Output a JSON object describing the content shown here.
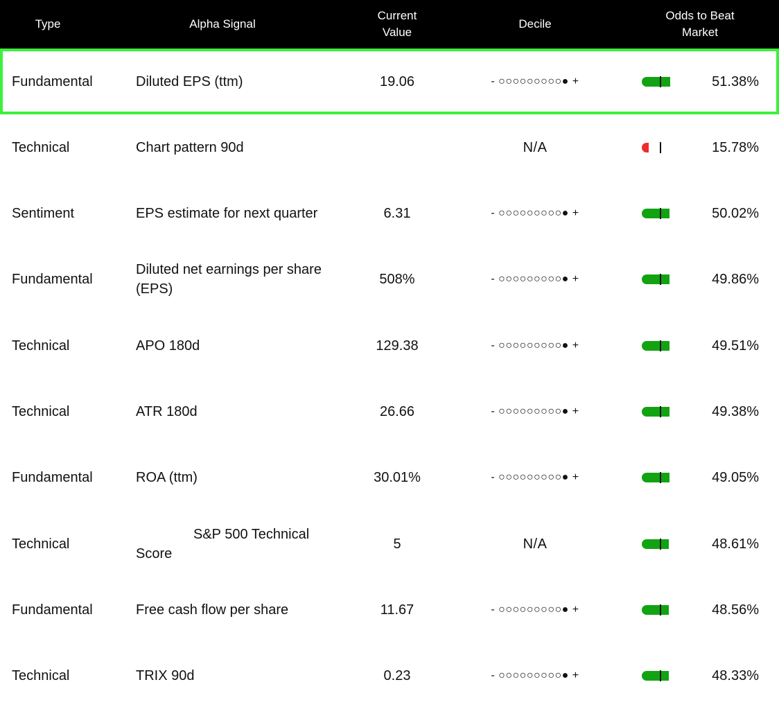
{
  "header": {
    "type": "Type",
    "alpha": "Alpha Signal",
    "current": "Current\nValue",
    "decile": "Decile",
    "odds": "Odds to Beat\nMarket"
  },
  "colors": {
    "selected_border": "#3cf03c",
    "bar_green": "#12a312",
    "bar_red": "#ef2a2a"
  },
  "rows": [
    {
      "type": "Fundamental",
      "signal": "Diluted EPS (ttm)",
      "current": "19.06",
      "decile": "- ○○○○○○○○○● +",
      "odds": "51.38%",
      "odds_fraction": 0.5138,
      "bar_color": "green",
      "selected": true
    },
    {
      "type": "Technical",
      "signal": "Chart pattern 90d",
      "current": "",
      "decile": "N/A",
      "odds": "15.78%",
      "odds_fraction": 0.1578,
      "bar_color": "red",
      "selected": false
    },
    {
      "type": "Sentiment",
      "signal": "EPS estimate for next quarter",
      "current": "6.31",
      "decile": "- ○○○○○○○○○● +",
      "odds": "50.02%",
      "odds_fraction": 0.5002,
      "bar_color": "green",
      "selected": false
    },
    {
      "type": "Fundamental",
      "signal": "Diluted net earnings per share (EPS)",
      "current": "508%",
      "decile": "- ○○○○○○○○○● +",
      "odds": "49.86%",
      "odds_fraction": 0.4986,
      "bar_color": "green",
      "selected": false
    },
    {
      "type": "Technical",
      "signal": "APO 180d",
      "current": "129.38",
      "decile": "- ○○○○○○○○○● +",
      "odds": "49.51%",
      "odds_fraction": 0.4951,
      "bar_color": "green",
      "selected": false
    },
    {
      "type": "Technical",
      "signal": "ATR 180d",
      "current": "26.66",
      "decile": "- ○○○○○○○○○● +",
      "odds": "49.38%",
      "odds_fraction": 0.4938,
      "bar_color": "green",
      "selected": false
    },
    {
      "type": "Fundamental",
      "signal": "ROA (ttm)",
      "current": "30.01%",
      "decile": "- ○○○○○○○○○● +",
      "odds": "49.05%",
      "odds_fraction": 0.4905,
      "bar_color": "green",
      "selected": false
    },
    {
      "type": "Technical",
      "signal": "S&P 500 Technical Score",
      "current": "5",
      "decile": "N/A",
      "odds": "48.61%",
      "odds_fraction": 0.4861,
      "bar_color": "green",
      "selected": false,
      "signal_lines": [
        "S&P 500 Technical",
        "Score"
      ]
    },
    {
      "type": "Fundamental",
      "signal": "Free cash flow per share",
      "current": "11.67",
      "decile": "- ○○○○○○○○○● +",
      "odds": "48.56%",
      "odds_fraction": 0.4856,
      "bar_color": "green",
      "selected": false
    },
    {
      "type": "Technical",
      "signal": "TRIX 90d",
      "current": "0.23",
      "decile": "- ○○○○○○○○○● +",
      "odds": "48.33%",
      "odds_fraction": 0.4833,
      "bar_color": "green",
      "selected": false
    }
  ]
}
